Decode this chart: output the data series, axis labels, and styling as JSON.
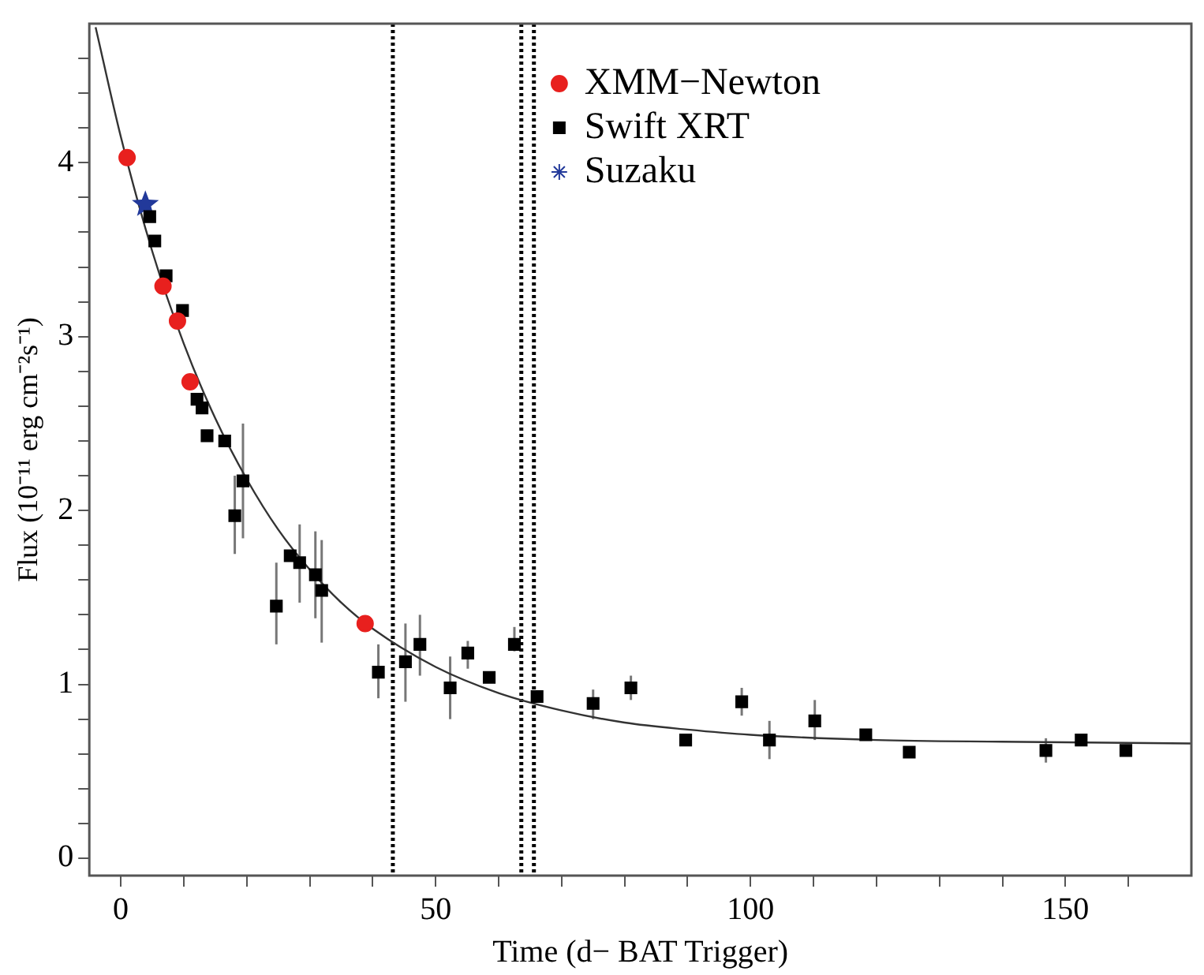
{
  "chart_data": {
    "type": "scatter",
    "xlabel": "Time (d− BAT Trigger)",
    "ylabel": "Flux (10⁻¹¹ erg cm⁻²s⁻¹)",
    "xlim": [
      -5,
      170
    ],
    "ylim": [
      -0.1,
      4.8
    ],
    "xticks": [
      0,
      {
        "value": 10,
        "label": null
      },
      {
        "value": 20,
        "label": null
      },
      {
        "value": 30,
        "label": null
      },
      {
        "value": 40,
        "label": null
      },
      50,
      {
        "value": 60,
        "label": null
      },
      {
        "value": 70,
        "label": null
      },
      {
        "value": 80,
        "label": null
      },
      {
        "value": 90,
        "label": null
      },
      100,
      {
        "value": 110,
        "label": null
      },
      {
        "value": 120,
        "label": null
      },
      {
        "value": 130,
        "label": null
      },
      {
        "value": 140,
        "label": null
      },
      150,
      {
        "value": 160,
        "label": null
      }
    ],
    "yticks": [
      0,
      {
        "value": 0.2,
        "label": null
      },
      {
        "value": 0.4,
        "label": null
      },
      {
        "value": 0.6,
        "label": null
      },
      {
        "value": 0.8,
        "label": null
      },
      1,
      {
        "value": 1.2,
        "label": null
      },
      {
        "value": 1.4,
        "label": null
      },
      {
        "value": 1.6,
        "label": null
      },
      {
        "value": 1.8,
        "label": null
      },
      2,
      {
        "value": 2.2,
        "label": null
      },
      {
        "value": 2.4,
        "label": null
      },
      {
        "value": 2.6,
        "label": null
      },
      {
        "value": 2.8,
        "label": null
      },
      3,
      {
        "value": 3.2,
        "label": null
      },
      {
        "value": 3.4,
        "label": null
      },
      {
        "value": 3.6,
        "label": null
      },
      {
        "value": 3.8,
        "label": null
      },
      4,
      {
        "value": 4.2,
        "label": null
      },
      {
        "value": 4.4,
        "label": null
      },
      {
        "value": 4.6,
        "label": null
      }
    ],
    "grid": false,
    "legend": "top right",
    "ref_lines": [
      {
        "axis": "x",
        "value": 43.2,
        "line_style": "dotted",
        "color": "#000000"
      },
      {
        "axis": "x",
        "value": 63.6,
        "line_style": "dotted",
        "color": "#000000"
      },
      {
        "axis": "x",
        "value": 65.6,
        "line_style": "dotted",
        "color": "#000000"
      }
    ],
    "series": [
      {
        "type": "line",
        "color": "#333333",
        "marker": "none",
        "x": [
          -4,
          0,
          5,
          10,
          15,
          20,
          25,
          30,
          35,
          40,
          50,
          60,
          70,
          80,
          90,
          100,
          120,
          140,
          170
        ],
        "values": [
          4.78,
          4.15,
          3.49,
          2.96,
          2.53,
          2.18,
          1.89,
          1.66,
          1.47,
          1.32,
          1.1,
          0.95,
          0.85,
          0.78,
          0.74,
          0.71,
          0.68,
          0.67,
          0.66
        ]
      },
      {
        "name": "XMM−Newton",
        "color": "#e8201e",
        "marker": "circle",
        "x": [
          1,
          6.7,
          9,
          11,
          38.8
        ],
        "values": [
          4.03,
          3.29,
          3.09,
          2.74,
          1.35
        ]
      },
      {
        "name": "Swift XRT",
        "color": "#000000",
        "marker": "square",
        "x": [
          4.6,
          5.4,
          7.2,
          9.8,
          12.1,
          12.9,
          13.7,
          16.5,
          18.1,
          19.4,
          24.7,
          26.9,
          28.4,
          30.9,
          31.9,
          40.9,
          45.2,
          47.5,
          52.3,
          55.1,
          58.5,
          62.5,
          66.1,
          75,
          81,
          89.7,
          98.6,
          103,
          110.2,
          118.3,
          125.2,
          146.9,
          152.5,
          159.6
        ],
        "values": [
          3.69,
          3.55,
          3.35,
          3.15,
          2.64,
          2.59,
          2.43,
          2.4,
          1.97,
          2.17,
          1.45,
          1.74,
          1.7,
          1.63,
          1.54,
          1.07,
          1.13,
          1.23,
          0.98,
          1.18,
          1.04,
          1.23,
          0.93,
          0.89,
          0.98,
          0.68,
          0.9,
          0.68,
          0.79,
          0.71,
          0.61,
          0.62,
          0.68,
          0.62
        ],
        "errors": [
          null,
          null,
          null,
          null,
          null,
          null,
          null,
          null,
          [
            1.75,
            2.2
          ],
          [
            1.84,
            2.5
          ],
          [
            1.23,
            1.7
          ],
          null,
          [
            1.47,
            1.92
          ],
          [
            1.38,
            1.88
          ],
          [
            1.24,
            1.83
          ],
          [
            0.92,
            1.23
          ],
          [
            0.9,
            1.35
          ],
          [
            1.05,
            1.4
          ],
          [
            0.8,
            1.16
          ],
          [
            1.09,
            1.25
          ],
          null,
          [
            1.19,
            1.33
          ],
          null,
          [
            0.8,
            0.97
          ],
          [
            0.91,
            1.05
          ],
          null,
          [
            0.82,
            0.98
          ],
          [
            0.57,
            0.79
          ],
          [
            0.68,
            0.91
          ],
          null,
          null,
          [
            0.55,
            0.69
          ],
          null,
          null
        ]
      },
      {
        "name": "Suzaku",
        "color": "#22399a",
        "marker": "star",
        "x": [
          3.9
        ],
        "values": [
          3.76
        ]
      }
    ]
  }
}
